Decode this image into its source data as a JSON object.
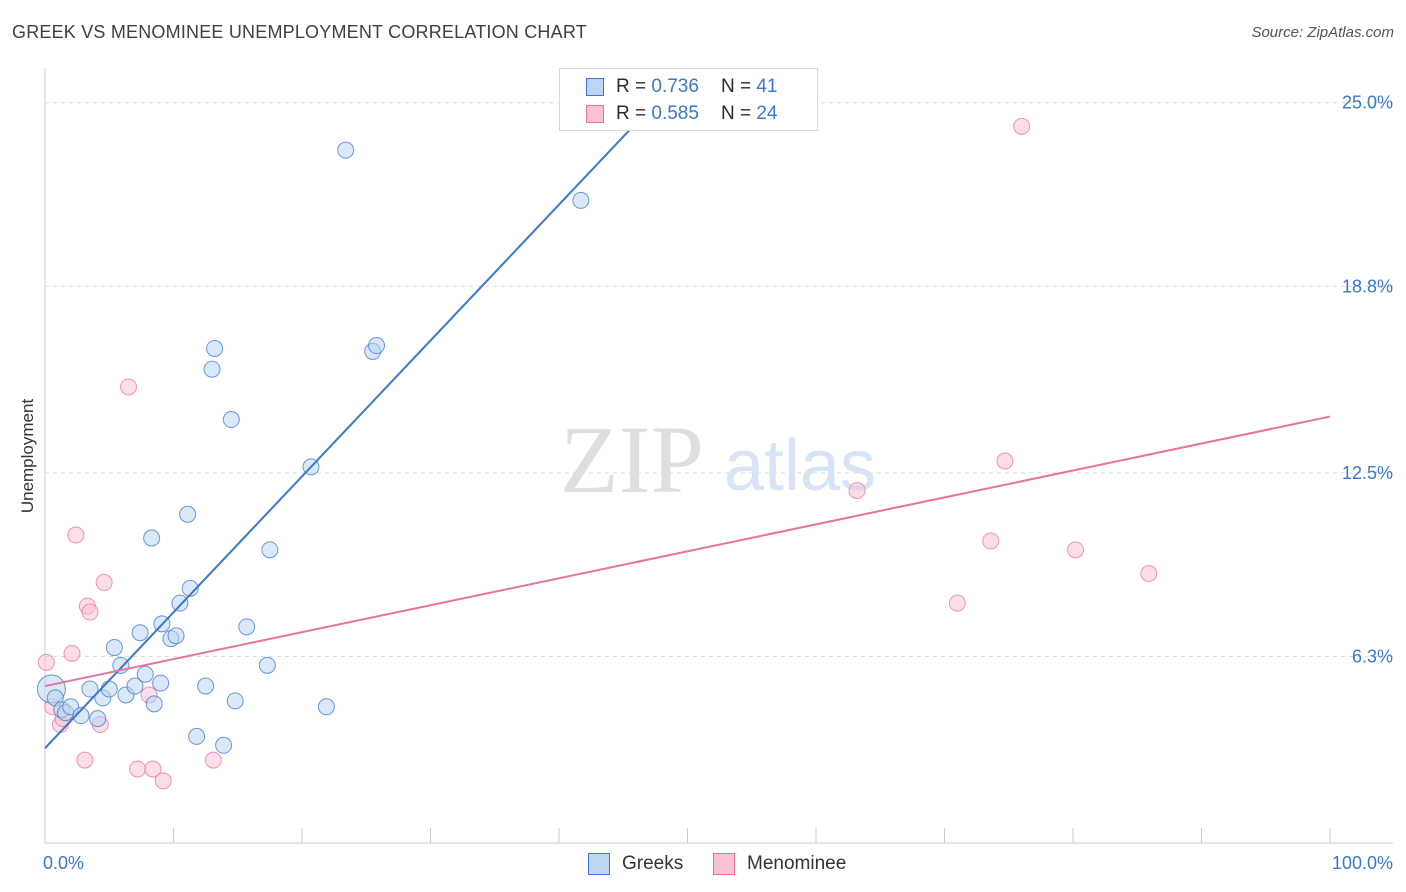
{
  "title": "GREEK VS MENOMINEE UNEMPLOYMENT CORRELATION CHART",
  "source": "Source: ZipAtlas.com",
  "watermark": {
    "zip": "ZIP",
    "atlas": "atlas"
  },
  "colors": {
    "blue": "#3a78c9",
    "blue_fill": "#bcd5f3",
    "pink": "#e8739a",
    "pink_fill": "#f7c3d3",
    "grid": "#dcdcdc"
  },
  "legend": {
    "r_label": "R =",
    "n_label": "N =",
    "rows": [
      {
        "name": "Greeks",
        "r": "0.736",
        "n": "41"
      },
      {
        "name": "Menominee",
        "r": "0.585",
        "n": "24"
      }
    ]
  },
  "chart_data": {
    "type": "scatter",
    "title": "GREEK VS MENOMINEE UNEMPLOYMENT CORRELATION CHART",
    "xlabel": "",
    "ylabel": "Unemployment",
    "xlim": [
      0,
      100
    ],
    "ylim": [
      0,
      25.8
    ],
    "x_tick_labels": [
      "0.0%",
      "100.0%"
    ],
    "y_ticks": [
      6.3,
      12.5,
      18.8,
      25.0
    ],
    "y_tick_labels": [
      "6.3%",
      "12.5%",
      "18.8%",
      "25.0%"
    ],
    "grid": true,
    "legend_position": "top-center",
    "series": [
      {
        "name": "Greeks",
        "color": "#3a78c9",
        "r": 0.736,
        "n": 41,
        "trend": {
          "x": [
            0,
            47.5
          ],
          "y": [
            3.2,
            25.0
          ]
        },
        "points": [
          {
            "x": 0.5,
            "y": 5.2,
            "big": true
          },
          {
            "x": 0.8,
            "y": 4.9
          },
          {
            "x": 1.3,
            "y": 4.5
          },
          {
            "x": 1.6,
            "y": 4.4
          },
          {
            "x": 2.0,
            "y": 4.6
          },
          {
            "x": 2.8,
            "y": 4.3
          },
          {
            "x": 3.5,
            "y": 5.2
          },
          {
            "x": 4.1,
            "y": 4.2
          },
          {
            "x": 4.5,
            "y": 4.9
          },
          {
            "x": 5.0,
            "y": 5.2
          },
          {
            "x": 5.4,
            "y": 6.6
          },
          {
            "x": 5.9,
            "y": 6.0
          },
          {
            "x": 6.3,
            "y": 5.0
          },
          {
            "x": 7.0,
            "y": 5.3
          },
          {
            "x": 7.4,
            "y": 7.1
          },
          {
            "x": 7.8,
            "y": 5.7
          },
          {
            "x": 8.3,
            "y": 10.3
          },
          {
            "x": 8.5,
            "y": 4.7
          },
          {
            "x": 9.0,
            "y": 5.4
          },
          {
            "x": 9.1,
            "y": 7.4
          },
          {
            "x": 9.8,
            "y": 6.9
          },
          {
            "x": 10.2,
            "y": 7.0
          },
          {
            "x": 10.5,
            "y": 8.1
          },
          {
            "x": 11.1,
            "y": 11.1
          },
          {
            "x": 11.3,
            "y": 8.6
          },
          {
            "x": 11.8,
            "y": 3.6
          },
          {
            "x": 12.5,
            "y": 5.3
          },
          {
            "x": 13.0,
            "y": 16.0
          },
          {
            "x": 13.2,
            "y": 16.7
          },
          {
            "x": 13.9,
            "y": 3.3
          },
          {
            "x": 14.5,
            "y": 14.3
          },
          {
            "x": 14.8,
            "y": 4.8
          },
          {
            "x": 15.7,
            "y": 7.3
          },
          {
            "x": 17.3,
            "y": 6.0
          },
          {
            "x": 17.5,
            "y": 9.9
          },
          {
            "x": 20.7,
            "y": 12.7
          },
          {
            "x": 21.9,
            "y": 4.6
          },
          {
            "x": 23.4,
            "y": 23.4
          },
          {
            "x": 25.5,
            "y": 16.6
          },
          {
            "x": 25.8,
            "y": 16.8
          },
          {
            "x": 41.7,
            "y": 21.7
          }
        ]
      },
      {
        "name": "Menominee",
        "color": "#e8739a",
        "r": 0.585,
        "n": 24,
        "trend": {
          "x": [
            0,
            100
          ],
          "y": [
            5.3,
            14.4
          ]
        },
        "points": [
          {
            "x": 0.1,
            "y": 6.1
          },
          {
            "x": 0.6,
            "y": 4.6
          },
          {
            "x": 1.2,
            "y": 4.0
          },
          {
            "x": 1.4,
            "y": 4.2
          },
          {
            "x": 2.1,
            "y": 6.4
          },
          {
            "x": 2.4,
            "y": 10.4
          },
          {
            "x": 3.1,
            "y": 2.8
          },
          {
            "x": 3.3,
            "y": 8.0
          },
          {
            "x": 3.5,
            "y": 7.8
          },
          {
            "x": 4.3,
            "y": 4.0
          },
          {
            "x": 4.6,
            "y": 8.8
          },
          {
            "x": 6.5,
            "y": 15.4
          },
          {
            "x": 7.2,
            "y": 2.5
          },
          {
            "x": 8.1,
            "y": 5.0
          },
          {
            "x": 8.4,
            "y": 2.5
          },
          {
            "x": 9.2,
            "y": 2.1
          },
          {
            "x": 13.1,
            "y": 2.8
          },
          {
            "x": 63.2,
            "y": 11.9
          },
          {
            "x": 71.0,
            "y": 8.1
          },
          {
            "x": 73.6,
            "y": 10.2
          },
          {
            "x": 74.7,
            "y": 12.9
          },
          {
            "x": 76.0,
            "y": 24.2
          },
          {
            "x": 80.2,
            "y": 9.9
          },
          {
            "x": 85.9,
            "y": 9.1
          }
        ]
      }
    ]
  }
}
